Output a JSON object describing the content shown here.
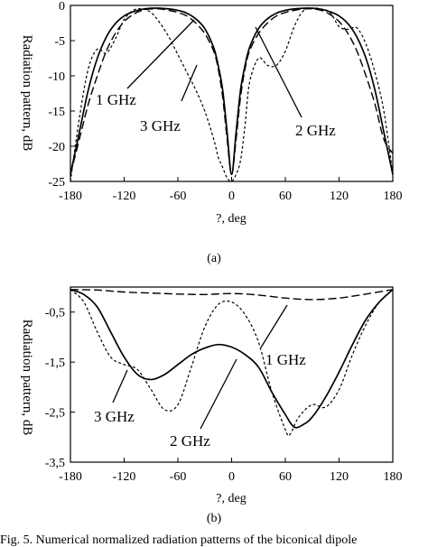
{
  "chart_data": [
    {
      "type": "line",
      "panel": "(a)",
      "xlabel": "?, deg",
      "ylabel": "Radiation pattern, dB",
      "xlim": [
        -180,
        180
      ],
      "ylim": [
        -25,
        0
      ],
      "xticks": [
        "-180",
        "-120",
        "-60",
        "0",
        "60",
        "120",
        "180"
      ],
      "yticks": [
        "0",
        "-5",
        "-10",
        "-15",
        "-20",
        "-25"
      ],
      "grid": false,
      "series": [
        {
          "name": "1 GHz",
          "style": "solid",
          "x": [
            -180,
            -170,
            -160,
            -150,
            -140,
            -130,
            -120,
            -110,
            -100,
            -90,
            -80,
            -70,
            -60,
            -50,
            -40,
            -30,
            -20,
            -15,
            -10,
            -5,
            0,
            5,
            10,
            15,
            20,
            30,
            40,
            50,
            60,
            70,
            80,
            90,
            100,
            110,
            120,
            130,
            140,
            150,
            160,
            170,
            180
          ],
          "y": [
            -24,
            -18,
            -12,
            -7.5,
            -4.5,
            -2.6,
            -1.5,
            -0.9,
            -0.55,
            -0.4,
            -0.4,
            -0.5,
            -0.7,
            -1.1,
            -1.9,
            -3.3,
            -6,
            -8.5,
            -12,
            -18,
            -24,
            -18,
            -12,
            -8.5,
            -6,
            -3.3,
            -1.9,
            -1.1,
            -0.7,
            -0.5,
            -0.4,
            -0.4,
            -0.55,
            -0.9,
            -1.5,
            -2.6,
            -4.5,
            -7.5,
            -12,
            -18,
            -24
          ]
        },
        {
          "name": "2 GHz",
          "style": "dashed",
          "x": [
            -180,
            -170,
            -160,
            -150,
            -140,
            -130,
            -120,
            -110,
            -100,
            -90,
            -80,
            -70,
            -60,
            -50,
            -40,
            -30,
            -20,
            -15,
            -10,
            -5,
            0,
            5,
            10,
            15,
            20,
            30,
            40,
            50,
            60,
            70,
            80,
            90,
            100,
            110,
            120,
            130,
            140,
            150,
            160,
            170,
            180
          ],
          "y": [
            -24,
            -19,
            -14,
            -10,
            -6.5,
            -4,
            -2.3,
            -1.3,
            -0.7,
            -0.5,
            -0.5,
            -0.7,
            -1,
            -1.5,
            -2.5,
            -4,
            -6.5,
            -9,
            -13,
            -19,
            -24,
            -19,
            -13,
            -9,
            -6.5,
            -4,
            -2.5,
            -1.5,
            -1,
            -0.7,
            -0.5,
            -0.5,
            -0.7,
            -1.3,
            -2.3,
            -4,
            -6.5,
            -10,
            -14,
            -19,
            -21
          ]
        },
        {
          "name": "3 GHz",
          "style": "dotted",
          "x": [
            -180,
            -170,
            -160,
            -150,
            -140,
            -130,
            -120,
            -110,
            -100,
            -90,
            -80,
            -70,
            -60,
            -50,
            -40,
            -30,
            -20,
            -15,
            -10,
            -5,
            0,
            5,
            10,
            15,
            20,
            30,
            40,
            50,
            60,
            70,
            80,
            90,
            100,
            110,
            120,
            130,
            140,
            150,
            160,
            170,
            180
          ],
          "y": [
            -25,
            -16,
            -9,
            -6.2,
            -6.8,
            -4.8,
            -2,
            -0.7,
            -0.5,
            -1,
            -2.5,
            -4.5,
            -7,
            -9.5,
            -12,
            -15,
            -19,
            -21.5,
            -23,
            -24.5,
            -25,
            -24,
            -22,
            -17,
            -11,
            -7.5,
            -8.5,
            -8.5,
            -6.5,
            -3,
            -0.8,
            -0.4,
            -0.5,
            -1,
            -3,
            -3.4,
            -3.2,
            -5.5,
            -9.5,
            -15,
            -24
          ]
        }
      ],
      "annotations": [
        "1 GHz",
        "3 GHz",
        "2 GHz"
      ]
    },
    {
      "type": "line",
      "panel": "(b)",
      "xlabel": "?, deg",
      "ylabel": "Radiation pattern, dB",
      "xlim": [
        -180,
        180
      ],
      "ylim": [
        -3.5,
        0
      ],
      "xticks": [
        "-180",
        "-120",
        "-60",
        "0",
        "60",
        "120",
        "180"
      ],
      "yticks": [
        "-0,5",
        "-1,5",
        "-2,5",
        "-3,5"
      ],
      "grid": false,
      "series": [
        {
          "name": "1 GHz",
          "style": "dashed",
          "x": [
            -180,
            -150,
            -120,
            -90,
            -60,
            -30,
            0,
            30,
            60,
            90,
            120,
            150,
            180
          ],
          "y": [
            -0.05,
            -0.06,
            -0.1,
            -0.12,
            -0.14,
            -0.15,
            -0.13,
            -0.16,
            -0.22,
            -0.25,
            -0.22,
            -0.14,
            -0.05
          ]
        },
        {
          "name": "2 GHz",
          "style": "solid",
          "x": [
            -180,
            -165,
            -150,
            -135,
            -120,
            -105,
            -90,
            -75,
            -60,
            -45,
            -30,
            -15,
            0,
            15,
            30,
            45,
            60,
            70,
            80,
            90,
            105,
            120,
            135,
            150,
            165,
            180
          ],
          "y": [
            -0.05,
            -0.15,
            -0.4,
            -0.9,
            -1.4,
            -1.75,
            -1.85,
            -1.75,
            -1.55,
            -1.35,
            -1.22,
            -1.15,
            -1.2,
            -1.35,
            -1.6,
            -2.1,
            -2.55,
            -2.8,
            -2.75,
            -2.6,
            -2.2,
            -1.7,
            -1.15,
            -0.65,
            -0.3,
            -0.05
          ]
        },
        {
          "name": "3 GHz",
          "style": "dotted",
          "x": [
            -180,
            -165,
            -150,
            -135,
            -120,
            -105,
            -90,
            -75,
            -60,
            -45,
            -30,
            -15,
            0,
            15,
            30,
            45,
            60,
            65,
            75,
            90,
            105,
            120,
            135,
            150,
            165,
            180
          ],
          "y": [
            -0.05,
            -0.3,
            -0.9,
            -1.4,
            -1.55,
            -1.65,
            -2.05,
            -2.45,
            -2.35,
            -1.6,
            -0.8,
            -0.35,
            -0.3,
            -0.55,
            -1.1,
            -2.1,
            -2.85,
            -2.95,
            -2.6,
            -2.35,
            -2.4,
            -2.05,
            -1.35,
            -0.75,
            -0.3,
            -0.05
          ]
        }
      ],
      "annotations": [
        "1 GHz",
        "3 GHz",
        "2 GHz"
      ]
    }
  ],
  "labels": {
    "panel_a": "(a)",
    "panel_b": "(b)",
    "ylabel_vertical": "Radiation pattern, dB",
    "caption": "Fig. 5.  Numerical normalized radiation patterns of the biconical dipole"
  },
  "colors": {
    "line": "#000000",
    "background": "#ffffff"
  }
}
